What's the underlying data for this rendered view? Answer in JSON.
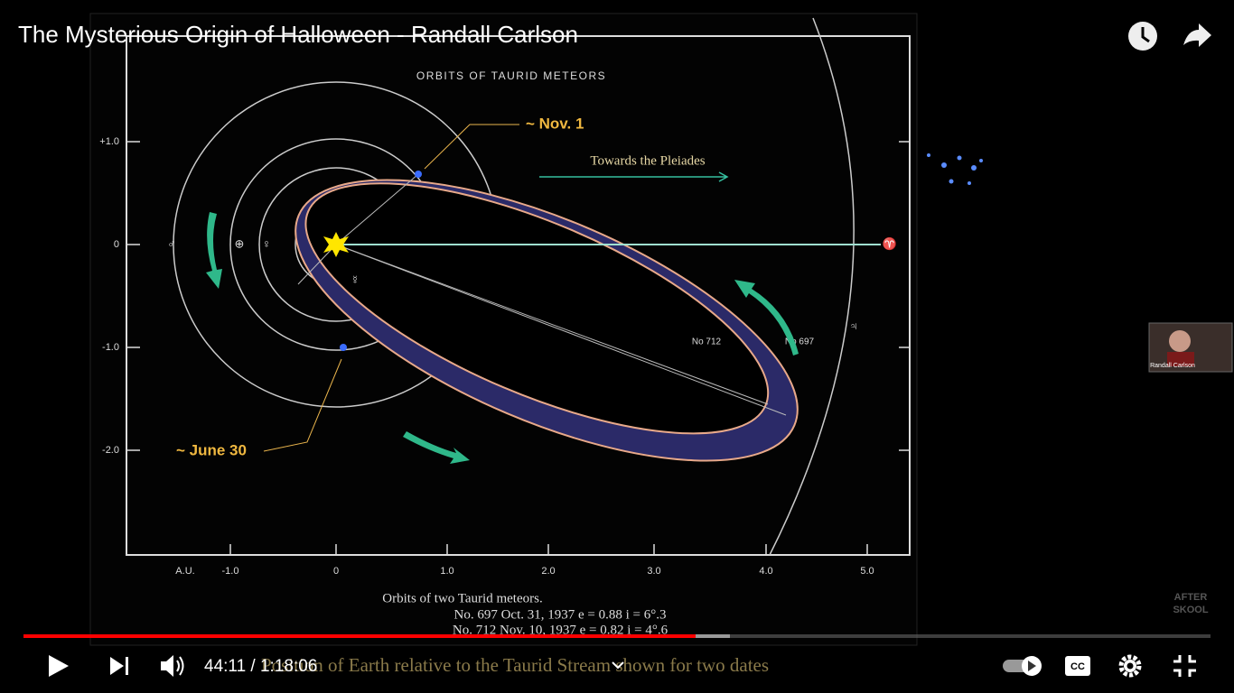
{
  "video": {
    "title": "The Mysterious Origin of Halloween - Randall Carlson"
  },
  "diagram": {
    "title": "ORBITS OF TAURID METEORS",
    "nov": "~ Nov. 1",
    "june": "~ June 30",
    "pleiades": "Towards the Pleiades",
    "orbit_a": "No 712",
    "orbit_b": "No 697",
    "y_axis": [
      "+1.0",
      "0",
      "-1.0",
      "-2.0"
    ],
    "x_unit": "A.U.",
    "x_axis": [
      "-1.0",
      "0",
      "1.0",
      "2.0",
      "3.0",
      "4.0",
      "5.0"
    ],
    "symbols": {
      "mars": "♂",
      "earth": "⊕",
      "venus": "♀",
      "mercury": "☿",
      "jupiter": "♃",
      "aries": "♈"
    },
    "caption": [
      "Orbits of two Taurid meteors.",
      "No. 697   Oct. 31, 1937   e = 0.88   i = 6°.3",
      "No. 712   Nov. 10, 1937   e = 0.82   i = 4°.6"
    ],
    "subcaption": "Position of Earth relative to the Taurid Stream shown for two dates"
  },
  "overlay": {
    "presenter": "Randall Carlson",
    "watermark": [
      "AFTER",
      "SKOOL"
    ]
  },
  "player": {
    "time": "44:11 / 1:18:06"
  }
}
